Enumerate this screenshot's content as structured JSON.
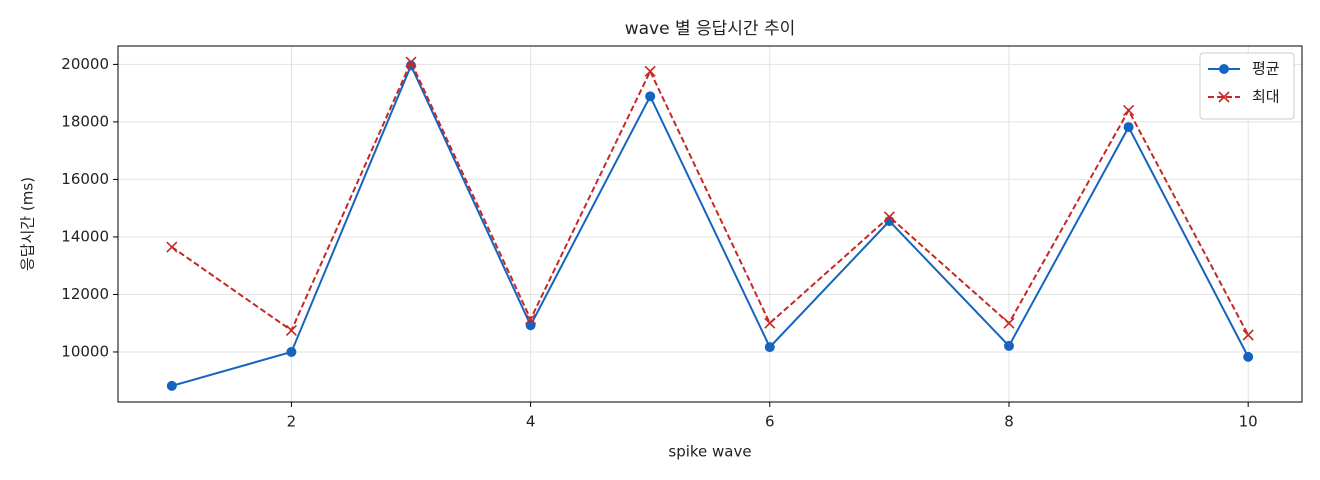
{
  "chart_data": {
    "type": "line",
    "title": "wave 별 응답시간 추이",
    "xlabel": "spike wave",
    "ylabel": "응답시간 (ms)",
    "x": [
      1,
      2,
      3,
      4,
      5,
      6,
      7,
      8,
      9,
      10
    ],
    "series": [
      {
        "name": "평균",
        "color": "#1565c0",
        "marker": "o",
        "dash": false,
        "values": [
          8820,
          10000,
          19960,
          10930,
          18890,
          10170,
          14550,
          10210,
          17820,
          9830
        ]
      },
      {
        "name": "최대",
        "color": "#c62828",
        "marker": "x",
        "dash": true,
        "values": [
          13650,
          10750,
          20080,
          11140,
          19760,
          11000,
          14700,
          11000,
          18400,
          10590
        ]
      }
    ],
    "xlim": [
      0.55,
      10.45
    ],
    "ylim": [
      8260,
      20640
    ],
    "xticks": [
      2,
      4,
      6,
      8,
      10
    ],
    "yticks": [
      10000,
      12000,
      14000,
      16000,
      18000,
      20000
    ],
    "grid": true,
    "legend": "upper right"
  }
}
